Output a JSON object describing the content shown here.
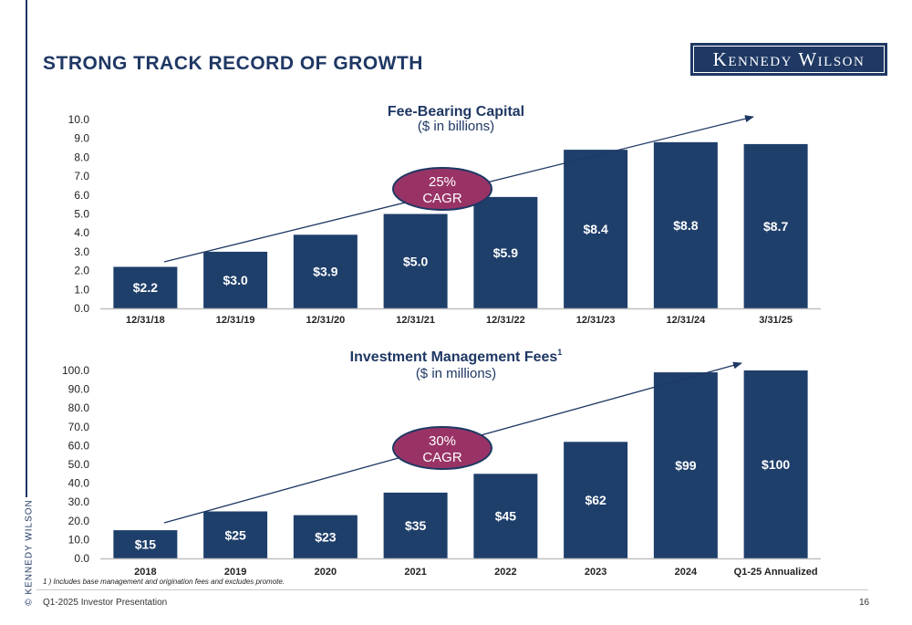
{
  "sidebar_text": "© KENNEDY WILSON",
  "page_title": "STRONG TRACK RECORD OF GROWTH",
  "logo_text": "Kennedy Wilson",
  "footnote": "1 ) Includes base management and origination fees and excludes promote.",
  "footer": {
    "left": "Q1-2025 Investor Presentation",
    "page_number": "16"
  },
  "colors": {
    "bar": "#1f3f6b",
    "bubble": "#993366",
    "bubble_border": "#1f3864",
    "text": "#1f3864"
  },
  "chart_data": [
    {
      "type": "bar",
      "title": "Fee-Bearing Capital",
      "subtitle": "($ in billions)",
      "categories": [
        "12/31/18",
        "12/31/19",
        "12/31/20",
        "12/31/21",
        "12/31/22",
        "12/31/23",
        "12/31/24",
        "3/31/25"
      ],
      "values": [
        2.2,
        3.0,
        3.9,
        5.0,
        5.9,
        8.4,
        8.8,
        8.7
      ],
      "data_labels": [
        "$2.2",
        "$3.0",
        "$3.9",
        "$5.0",
        "$5.9",
        "$8.4",
        "$8.8",
        "$8.7"
      ],
      "yticks": [
        "0.0",
        "1.0",
        "2.0",
        "3.0",
        "4.0",
        "5.0",
        "6.0",
        "7.0",
        "8.0",
        "9.0",
        "10.0"
      ],
      "ylim": [
        0,
        10
      ],
      "grid": false,
      "callout": [
        "25%",
        "CAGR"
      ]
    },
    {
      "type": "bar",
      "title": "Investment Management Fees",
      "title_superscript": "1",
      "subtitle": "($ in millions)",
      "categories": [
        "2018",
        "2019",
        "2020",
        "2021",
        "2022",
        "2023",
        "2024",
        "Q1-25 Annualized"
      ],
      "values": [
        15,
        25,
        23,
        35,
        45,
        62,
        99,
        100
      ],
      "data_labels": [
        "$15",
        "$25",
        "$23",
        "$35",
        "$45",
        "$62",
        "$99",
        "$100"
      ],
      "yticks": [
        "0.0",
        "10.0",
        "20.0",
        "30.0",
        "40.0",
        "50.0",
        "60.0",
        "70.0",
        "80.0",
        "90.0",
        "100.0"
      ],
      "ylim": [
        0,
        100
      ],
      "grid": false,
      "callout": [
        "30%",
        "CAGR"
      ]
    }
  ]
}
